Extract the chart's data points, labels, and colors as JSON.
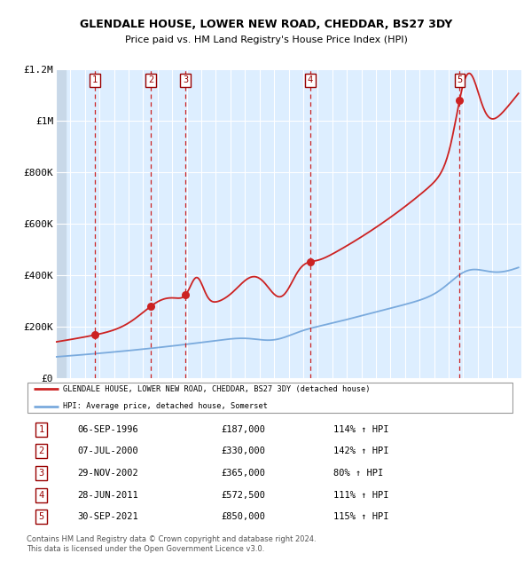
{
  "title": "GLENDALE HOUSE, LOWER NEW ROAD, CHEDDAR, BS27 3DY",
  "subtitle": "Price paid vs. HM Land Registry's House Price Index (HPI)",
  "transactions": [
    {
      "num": 1,
      "date": 1996.68,
      "price": 187000,
      "label": "06-SEP-1996",
      "pct": "114%"
    },
    {
      "num": 2,
      "date": 2000.52,
      "price": 330000,
      "label": "07-JUL-2000",
      "pct": "142%"
    },
    {
      "num": 3,
      "date": 2002.91,
      "price": 365000,
      "label": "29-NOV-2002",
      "pct": "80%"
    },
    {
      "num": 4,
      "date": 2011.49,
      "price": 572500,
      "label": "28-JUN-2011",
      "pct": "111%"
    },
    {
      "num": 5,
      "date": 2021.75,
      "price": 850000,
      "label": "30-SEP-2021",
      "pct": "115%"
    }
  ],
  "hpi_line_color": "#7aaadd",
  "price_line_color": "#cc2222",
  "dot_color": "#cc2222",
  "vline_color": "#cc2222",
  "bg_color": "#ddeeff",
  "hatch_color": "#c8d8e8",
  "grid_color": "#ffffff",
  "ylim": [
    0,
    1200000
  ],
  "xlim": [
    1994,
    2026
  ],
  "yticks": [
    0,
    200000,
    400000,
    600000,
    800000,
    1000000,
    1200000
  ],
  "ytick_labels": [
    "£0",
    "£200K",
    "£400K",
    "£600K",
    "£800K",
    "£1M",
    "£1.2M"
  ],
  "legend_line1": "GLENDALE HOUSE, LOWER NEW ROAD, CHEDDAR, BS27 3DY (detached house)",
  "legend_line2": "HPI: Average price, detached house, Somerset",
  "footer": "Contains HM Land Registry data © Crown copyright and database right 2024.\nThis data is licensed under the Open Government Licence v3.0.",
  "table_rows": [
    [
      "1",
      "06-SEP-1996",
      "£187,000",
      "114% ↑ HPI"
    ],
    [
      "2",
      "07-JUL-2000",
      "£330,000",
      "142% ↑ HPI"
    ],
    [
      "3",
      "29-NOV-2002",
      "£365,000",
      "80% ↑ HPI"
    ],
    [
      "4",
      "28-JUN-2011",
      "£572,500",
      "111% ↑ HPI"
    ],
    [
      "5",
      "30-SEP-2021",
      "£850,000",
      "115% ↑ HPI"
    ]
  ]
}
